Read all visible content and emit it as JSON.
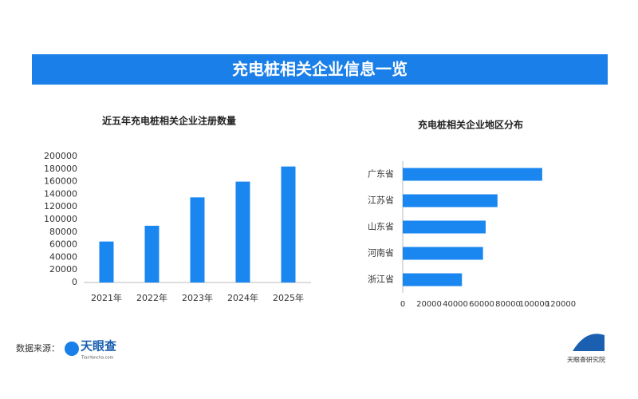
{
  "header": {
    "title": "充电桩相关企业信息一览"
  },
  "chart_data": [
    {
      "type": "bar",
      "title": "近五年充电桩相关企业注册数量",
      "categories": [
        "2021年",
        "2022年",
        "2023年",
        "2024年",
        "2025年"
      ],
      "values": [
        65000,
        90000,
        135000,
        160000,
        184000
      ],
      "color": "#1a86f0",
      "ylim": [
        0,
        200000
      ],
      "yticks": [
        0,
        20000,
        40000,
        60000,
        80000,
        100000,
        120000,
        140000,
        160000,
        180000,
        200000
      ]
    },
    {
      "type": "barh",
      "title": "充电桩相关企业地区分布",
      "categories": [
        "广东省",
        "江苏省",
        "山东省",
        "河南省",
        "浙江省"
      ],
      "values": [
        106000,
        72000,
        63000,
        61000,
        45000
      ],
      "color": "#1a86f0",
      "xlim": [
        0,
        120000
      ],
      "xticks": [
        0,
        20000,
        40000,
        60000,
        80000,
        100000,
        120000
      ]
    }
  ],
  "footer": {
    "source_label": "数据来源：",
    "source_logo": "天眼查",
    "source_url": "TianYancha.com",
    "brand": "天眼查研究院"
  }
}
